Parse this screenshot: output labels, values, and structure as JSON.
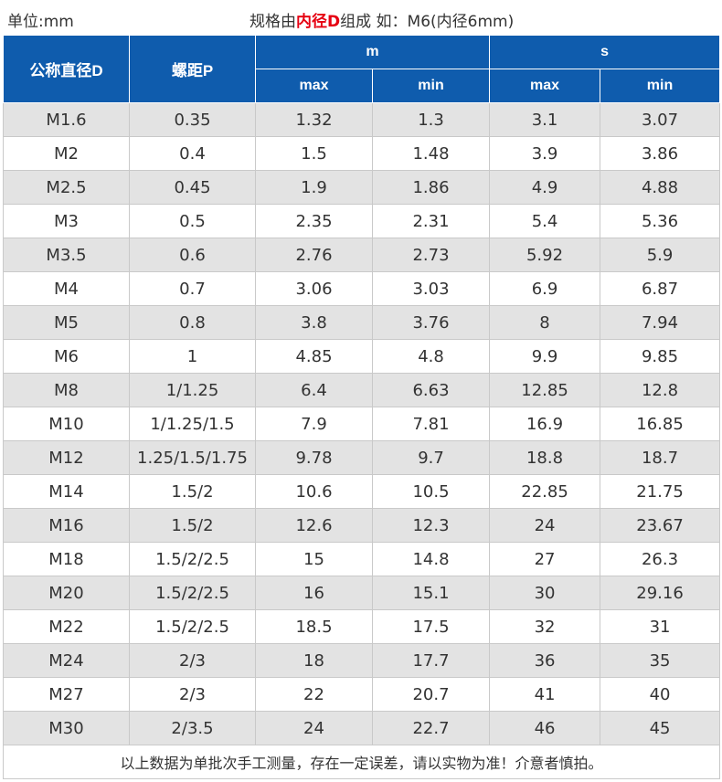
{
  "caption": {
    "unit": "单位:mm",
    "spec_prefix": "规格由",
    "spec_highlight": "内径D",
    "spec_suffix": "组成 如：M6(内径6mm)"
  },
  "headers": {
    "col1": "公称直径D",
    "col2": "螺距P",
    "group_m": "m",
    "group_s": "s",
    "m_max": "max",
    "m_min": "min",
    "s_max": "max",
    "s_min": "min"
  },
  "rows": [
    [
      "M1.6",
      "0.35",
      "1.32",
      "1.3",
      "3.1",
      "3.07"
    ],
    [
      "M2",
      "0.4",
      "1.5",
      "1.48",
      "3.9",
      "3.86"
    ],
    [
      "M2.5",
      "0.45",
      "1.9",
      "1.86",
      "4.9",
      "4.88"
    ],
    [
      "M3",
      "0.5",
      "2.35",
      "2.31",
      "5.4",
      "5.36"
    ],
    [
      "M3.5",
      "0.6",
      "2.76",
      "2.73",
      "5.92",
      "5.9"
    ],
    [
      "M4",
      "0.7",
      "3.06",
      "3.03",
      "6.9",
      "6.87"
    ],
    [
      "M5",
      "0.8",
      "3.8",
      "3.76",
      "8",
      "7.94"
    ],
    [
      "M6",
      "1",
      "4.85",
      "4.8",
      "9.9",
      "9.85"
    ],
    [
      "M8",
      "1/1.25",
      "6.4",
      "6.63",
      "12.85",
      "12.8"
    ],
    [
      "M10",
      "1/1.25/1.5",
      "7.9",
      "7.81",
      "16.9",
      "16.85"
    ],
    [
      "M12",
      "1.25/1.5/1.75",
      "9.78",
      "9.7",
      "18.8",
      "18.7"
    ],
    [
      "M14",
      "1.5/2",
      "10.6",
      "10.5",
      "22.85",
      "21.75"
    ],
    [
      "M16",
      "1.5/2",
      "12.6",
      "12.3",
      "24",
      "23.67"
    ],
    [
      "M18",
      "1.5/2/2.5",
      "15",
      "14.8",
      "27",
      "26.3"
    ],
    [
      "M20",
      "1.5/2/2.5",
      "16",
      "15.1",
      "30",
      "29.16"
    ],
    [
      "M22",
      "1.5/2/2.5",
      "18.5",
      "17.5",
      "32",
      "31"
    ],
    [
      "M24",
      "2/3",
      "18",
      "17.7",
      "36",
      "35"
    ],
    [
      "M27",
      "2/3",
      "22",
      "20.7",
      "41",
      "40"
    ],
    [
      "M30",
      "2/3.5",
      "24",
      "22.7",
      "46",
      "45"
    ]
  ],
  "footnote": "以上数据为单批次手工测量，存在一定误差，请以实物为准！介意者慎拍。"
}
